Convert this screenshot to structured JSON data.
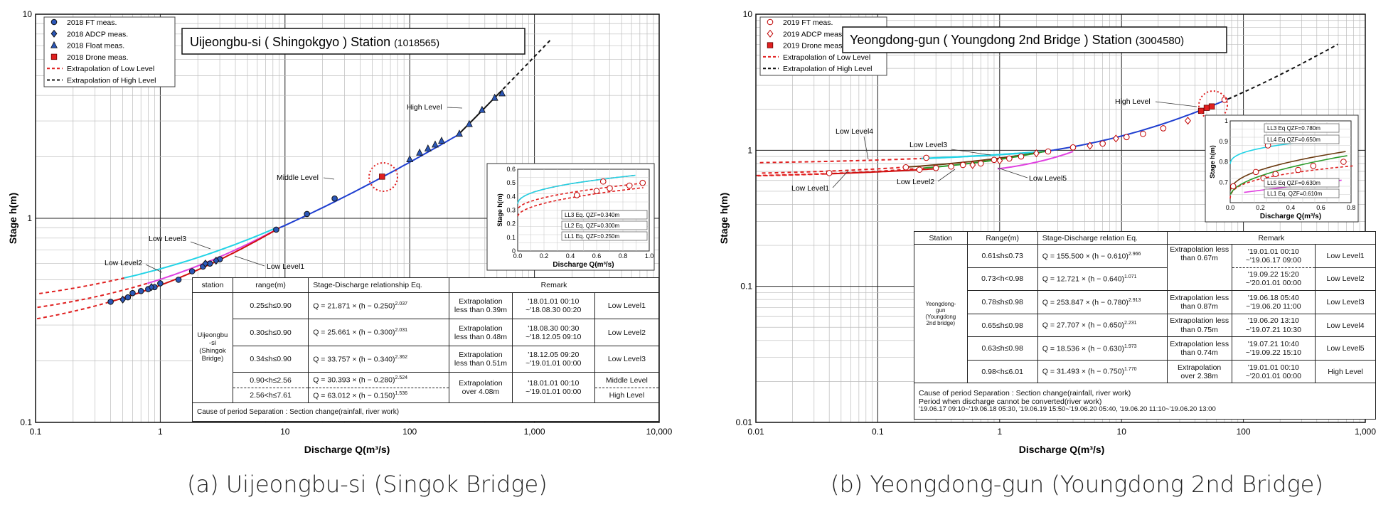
{
  "chart_data": [
    {
      "type": "scatter",
      "caption": "(a) Uijeongbu-si (Singok Bridge)",
      "title": "Uijeongbu-si ( Shingokgyo ) Station",
      "station_code": "(1018565)",
      "xlabel": "Discharge Q(m³/s)",
      "ylabel": "Stage h(m)",
      "x_scale": "log",
      "y_scale": "log",
      "xlim": [
        0.1,
        10000
      ],
      "ylim": [
        0.1,
        10
      ],
      "x_ticks": [
        "0.1",
        "1",
        "10",
        "100",
        "1,000",
        "10,000"
      ],
      "y_ticks": [
        "0.1",
        "1",
        "10"
      ],
      "grid": true,
      "legend": {
        "position": "top-left",
        "items": [
          {
            "label": "2018 FT meas.",
            "marker": "circle",
            "color": "#2b57b8"
          },
          {
            "label": "2018 ADCP meas.",
            "marker": "diamond",
            "color": "#2b57b8"
          },
          {
            "label": "2018 Float meas.",
            "marker": "triangle",
            "color": "#2b57b8"
          },
          {
            "label": "2018 Drone meas.",
            "marker": "square",
            "color": "#e02020"
          },
          {
            "label": "Extrapolation of Low Level",
            "line": "dashed",
            "color": "#e02020"
          },
          {
            "label": "Extrapolation of High Level",
            "line": "dashed",
            "color": "#111111"
          }
        ]
      },
      "series": [
        {
          "name": "2018 FT meas.",
          "x": [
            0.4,
            0.55,
            0.6,
            0.7,
            0.8,
            0.9,
            1.0,
            1.4,
            1.8,
            2.2,
            2.5,
            3.0,
            8.5,
            15,
            25
          ],
          "y": [
            0.39,
            0.41,
            0.43,
            0.44,
            0.45,
            0.46,
            0.48,
            0.5,
            0.55,
            0.58,
            0.6,
            0.63,
            0.88,
            1.05,
            1.25
          ]
        },
        {
          "name": "2018 ADCP meas.",
          "x": [
            0.5,
            0.85,
            2.3,
            2.8
          ],
          "y": [
            0.4,
            0.46,
            0.6,
            0.62
          ]
        },
        {
          "name": "2018 Float meas.",
          "x": [
            100,
            120,
            140,
            160,
            180,
            250,
            300,
            380,
            480,
            550
          ],
          "y": [
            1.95,
            2.1,
            2.2,
            2.3,
            2.4,
            2.6,
            2.9,
            3.4,
            3.9,
            4.1
          ]
        },
        {
          "name": "2018 Drone meas.",
          "x": [
            60
          ],
          "y": [
            1.6
          ]
        }
      ],
      "curve_labels": [
        "Low Level1",
        "Low Level2",
        "Low Level3",
        "Middle Level",
        "High Level"
      ],
      "table": {
        "headers": [
          "station",
          "range(m)",
          "Stage-Discharge relationship Eq.",
          "Remark"
        ],
        "station": "Uijeongbu\n-si\n(Shingok\nBridge)",
        "rows": [
          {
            "range": "0.25≤h≤0.90",
            "eq": "Q = 21.871 × (h − 0.250)",
            "exp": "2.037",
            "extrap": "Extrapolation less than 0.39m",
            "period": "'18.01.01 00:10 ~'18.08.30 00:20",
            "level": "Low Level1"
          },
          {
            "range": "0.30≤h≤0.90",
            "eq": "Q = 25.661 × (h − 0.300)",
            "exp": "2.031",
            "extrap": "Extrapolation less than 0.48m",
            "period": "'18.08.30 00:30 ~'18.12.05 09:10",
            "level": "Low Level2"
          },
          {
            "range": "0.34≤h≤0.90",
            "eq": "Q = 33.757 × (h − 0.340)",
            "exp": "2.362",
            "extrap": "Extrapolation less than 0.51m",
            "period": "'18.12.05 09:20 ~'19.01.01 00:00",
            "level": "Low Level3"
          },
          {
            "range": "0.90<h≤2.56",
            "eq": "Q = 30.393 × (h − 0.280)",
            "exp": "2.524",
            "extrap": "Extrapolation over 4.08m",
            "period": "'18.01.01 00:10 ~'19.01.01 00:00",
            "level": "Middle Level"
          },
          {
            "range": "2.56<h≤7.61",
            "eq": "Q = 63.012 × (h − 0.150)",
            "exp": "1.536",
            "level": "High Level"
          }
        ],
        "remark_header": "Remark",
        "note": "Cause of period Separation : Section change(rainfall, river work)"
      },
      "inset": {
        "xlabel": "Discharge Q(m³/s)",
        "ylabel": "Stage h(m)",
        "xlim": [
          0.0,
          1.0
        ],
        "ylim": [
          0.0,
          0.6
        ],
        "x_ticks": [
          "0.0",
          "0.2",
          "0.4",
          "0.6",
          "0.8",
          "1.0"
        ],
        "y_ticks": [
          "0",
          "0.1",
          "0.2",
          "0.3",
          "0.4",
          "0.5",
          "0.6"
        ],
        "labels": [
          "LL3 Eq. QZF=0.340m",
          "LL2 Eq. QZF=0.300m",
          "LL1 Eq. QZF=0.250m"
        ]
      }
    },
    {
      "type": "scatter",
      "caption": "(b) Yeongdong-gun (Youngdong 2nd Bridge)",
      "title": "Yeongdong-gun ( Youngdong 2nd Bridge ) Station",
      "station_code": "(3004580)",
      "xlabel": "Discharge Q(m³/s)",
      "ylabel": "Stage h(m)",
      "x_scale": "log",
      "y_scale": "log",
      "xlim": [
        0.01,
        1000
      ],
      "ylim": [
        0.01,
        10
      ],
      "x_ticks": [
        "0.01",
        "0.1",
        "1",
        "10",
        "100",
        "1,000"
      ],
      "y_ticks": [
        "0.01",
        "0.1",
        "1",
        "10"
      ],
      "grid": true,
      "legend": {
        "position": "top-left",
        "items": [
          {
            "label": "2019 FT meas.",
            "marker": "circle-open",
            "color": "#c00000"
          },
          {
            "label": "2019 ADCP meas.",
            "marker": "diamond-open",
            "color": "#c00000"
          },
          {
            "label": "2019 Drone meas.",
            "marker": "square",
            "color": "#e02020"
          },
          {
            "label": "Extrapolation of Low Level",
            "line": "dashed",
            "color": "#e02020"
          },
          {
            "label": "Extrapolation of High Level",
            "line": "dashed",
            "color": "#111111"
          }
        ]
      },
      "series": [
        {
          "name": "2019 FT meas.",
          "x": [
            0.04,
            0.17,
            0.22,
            0.25,
            0.3,
            0.4,
            0.5,
            0.7,
            0.9,
            1.2,
            1.5,
            2.5,
            4,
            7,
            11,
            15,
            22,
            70
          ],
          "y": [
            0.68,
            0.75,
            0.72,
            0.88,
            0.74,
            0.76,
            0.78,
            0.8,
            0.85,
            0.87,
            0.9,
            0.98,
            1.05,
            1.12,
            1.25,
            1.32,
            1.45,
            2.35
          ]
        },
        {
          "name": "2019 ADCP meas.",
          "x": [
            0.6,
            1.0,
            2.0,
            5.5,
            9,
            35
          ],
          "y": [
            0.78,
            0.84,
            0.95,
            1.08,
            1.22,
            1.65
          ]
        },
        {
          "name": "2019 Drone meas.",
          "x": [
            45,
            50,
            55
          ],
          "y": [
            1.95,
            2.05,
            2.1
          ]
        }
      ],
      "curve_labels": [
        "Low Level1",
        "Low Level2",
        "Low Level3",
        "Low Level4",
        "Low Level5",
        "High Level"
      ],
      "table": {
        "headers": [
          "Station",
          "Range(m)",
          "Stage-Discharge relation Eq.",
          "Remark"
        ],
        "station": "Yeongdong-\ngun\n(Youngdong\n2nd bridge)",
        "rows": [
          {
            "range": "0.61≤h≤0.73",
            "eq": "Q = 155.500 × (h − 0.610)",
            "exp": "2.966",
            "extrap": "Extrapolation less than 0.67m",
            "period": "'19.01.01 00:10 ~'19.06.17 09:00",
            "level": "Low Level1"
          },
          {
            "range": "0.73<h<0.98",
            "eq": "Q = 12.721 × (h − 0.640)",
            "exp": "1.071",
            "period": "'19.09.22 15:20 ~'20.01.01 00:00",
            "level": "Low Level2"
          },
          {
            "range": "0.78≤h≤0.98",
            "eq": "Q = 253.847 × (h − 0.780)",
            "exp": "2.913",
            "extrap": "Extrapolation less than 0.87m",
            "period": "'19.06.18 05:40 ~'19.06.20 11:00",
            "level": "Low Level3"
          },
          {
            "range": "0.65≤h≤0.98",
            "eq": "Q = 27.707 × (h − 0.650)",
            "exp": "2.231",
            "extrap": "Extrapolation less than 0.75m",
            "period": "'19.06.20 13:10 ~'19.07.21 10:30",
            "level": "Low Level4"
          },
          {
            "range": "0.63≤h≤0.98",
            "eq": "Q = 18.536 × (h − 0.630)",
            "exp": "1.973",
            "extrap": "Extrapolation less than 0.74m",
            "period": "'19.07.21 10:40 ~'19.09.22 15:10",
            "level": "Low Level5"
          },
          {
            "range": "0.98<h≤6.01",
            "eq": "Q = 31.493 × (h − 0.750)",
            "exp": "1.770",
            "extrap": "Extrapolation over 2.38m",
            "period": "'19.01.01 00:10 ~'20.01.01 00:00",
            "level": "High Level"
          }
        ],
        "remark_header": "Remark",
        "note1": "Cause of period Separation : Section change(rainfall, river work)",
        "note2": "Period when discharge cannot be converted(river work)",
        "note3": "'19.06.17 09:10~'19.06.18 05:30, '19.06.19 15:50~'19.06.20 05:40, '19.06.20 11:10~'19.06.20 13:00"
      },
      "inset": {
        "xlabel": "Discharge Q(m³/s)",
        "ylabel": "Stage h(m)",
        "xlim": [
          0.0,
          0.8
        ],
        "ylim": [
          0.6,
          1.0
        ],
        "x_ticks": [
          "0.0",
          "0.2",
          "0.4",
          "0.6",
          "0.8"
        ],
        "y_ticks": [
          "0.7",
          "0.8",
          "0.9",
          "1"
        ],
        "labels": [
          "LL3 Eq QZF=0.780m",
          "LL4 Eq QZF=0.650m",
          "LL5 Eq QZF=0.630m",
          "LL1 Eq. QZF=0.610m"
        ]
      }
    }
  ]
}
